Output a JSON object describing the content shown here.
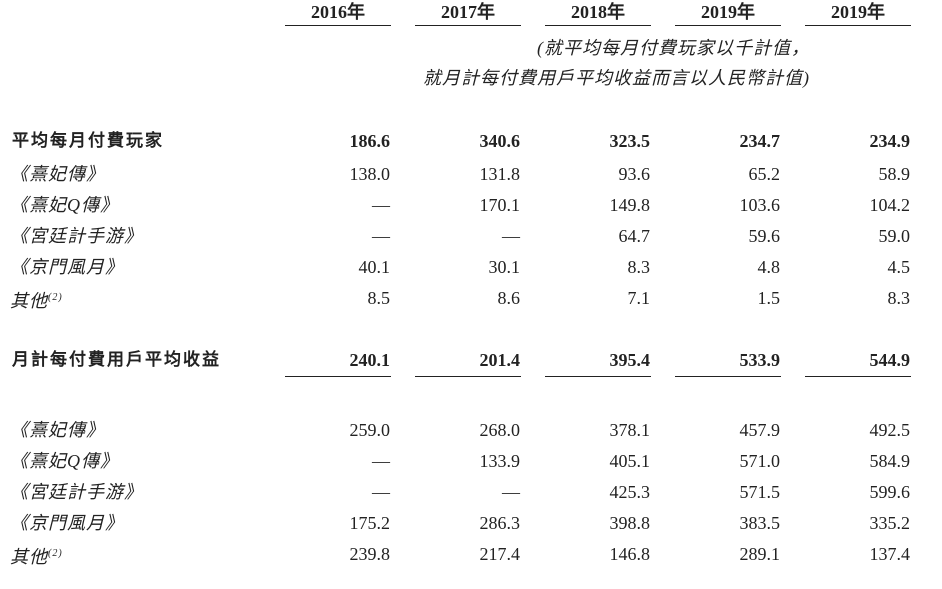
{
  "table": {
    "columns": [
      "2016年",
      "2017年",
      "2018年",
      "2019年",
      "2019年"
    ],
    "note": [
      "(就平均每月付費玩家以千計值，",
      "就月計每付費用戶平均收益而言以人民幣計值)"
    ],
    "sections": [
      {
        "title": "平均每月付費玩家",
        "totals": [
          "186.6",
          "340.6",
          "323.5",
          "234.7",
          "234.9"
        ],
        "rows": [
          {
            "label": "《熹妃傳》",
            "values": [
              "138.0",
              "131.8",
              "93.6",
              "65.2",
              "58.9"
            ]
          },
          {
            "label": "《熹妃Q傳》",
            "values": [
              "—",
              "170.1",
              "149.8",
              "103.6",
              "104.2"
            ]
          },
          {
            "label": "《宮廷計手游》",
            "values": [
              "—",
              "—",
              "64.7",
              "59.6",
              "59.0"
            ]
          },
          {
            "label": "《京門風月》",
            "values": [
              "40.1",
              "30.1",
              "8.3",
              "4.8",
              "4.5"
            ]
          },
          {
            "label": "其他",
            "note_ref": "(2)",
            "values": [
              "8.5",
              "8.6",
              "7.1",
              "1.5",
              "8.3"
            ]
          }
        ]
      },
      {
        "title": "月計每付費用戶平均收益",
        "totals": [
          "240.1",
          "201.4",
          "395.4",
          "533.9",
          "544.9"
        ],
        "rows": [
          {
            "label": "《熹妃傳》",
            "values": [
              "259.0",
              "268.0",
              "378.1",
              "457.9",
              "492.5"
            ]
          },
          {
            "label": "《熹妃Q傳》",
            "values": [
              "—",
              "133.9",
              "405.1",
              "571.0",
              "584.9"
            ]
          },
          {
            "label": "《宮廷計手游》",
            "values": [
              "—",
              "—",
              "425.3",
              "571.5",
              "599.6"
            ]
          },
          {
            "label": "《京門風月》",
            "values": [
              "175.2",
              "286.3",
              "398.8",
              "383.5",
              "335.2"
            ]
          },
          {
            "label": "其他",
            "note_ref": "(2)",
            "values": [
              "239.8",
              "217.4",
              "146.8",
              "289.1",
              "137.4"
            ]
          }
        ]
      }
    ]
  }
}
